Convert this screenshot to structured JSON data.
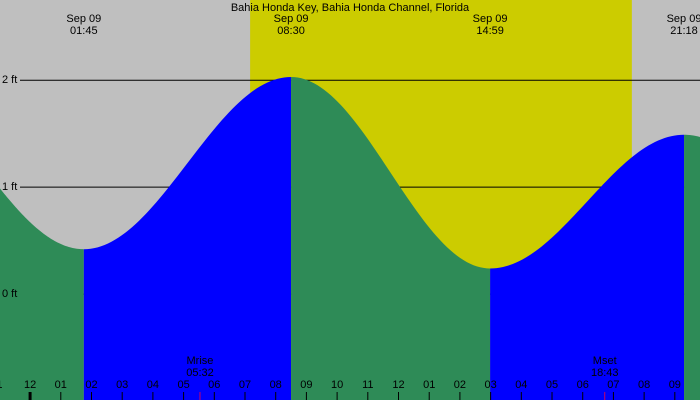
{
  "chart_data": {
    "type": "tide",
    "title": "Bahia Honda Key, Bahia Honda Channel, Florida",
    "xlim": [
      -0.98,
      21.82
    ],
    "ylim": [
      -0.99,
      2.75
    ],
    "xticks": [
      {
        "value": -1,
        "label": "1"
      },
      {
        "value": 0,
        "label": "12"
      },
      {
        "value": 1,
        "label": "01"
      },
      {
        "value": 2,
        "label": "02"
      },
      {
        "value": 3,
        "label": "03"
      },
      {
        "value": 4,
        "label": "04"
      },
      {
        "value": 5,
        "label": "05"
      },
      {
        "value": 6,
        "label": "06"
      },
      {
        "value": 7,
        "label": "07"
      },
      {
        "value": 8,
        "label": "08"
      },
      {
        "value": 9,
        "label": "09"
      },
      {
        "value": 10,
        "label": "10"
      },
      {
        "value": 11,
        "label": "11"
      },
      {
        "value": 12,
        "label": "12"
      },
      {
        "value": 13,
        "label": "01"
      },
      {
        "value": 14,
        "label": "02"
      },
      {
        "value": 15,
        "label": "03"
      },
      {
        "value": 16,
        "label": "04"
      },
      {
        "value": 17,
        "label": "05"
      },
      {
        "value": 18,
        "label": "06"
      },
      {
        "value": 19,
        "label": "07"
      },
      {
        "value": 20,
        "label": "08"
      },
      {
        "value": 21,
        "label": "09"
      }
    ],
    "yticks": [
      {
        "value": 0,
        "label": "0 ft"
      },
      {
        "value": 1,
        "label": "1 ft"
      },
      {
        "value": 2,
        "label": "2 ft"
      }
    ],
    "extremes": [
      {
        "date": "Sep 09",
        "time": "01:45",
        "height": 0.42
      },
      {
        "date": "Sep 09",
        "time": "08:30",
        "height": 2.03
      },
      {
        "date": "Sep 09",
        "time": "14:59",
        "height": 0.24
      },
      {
        "date": "Sep 09",
        "time": "21:18",
        "height": 1.49
      }
    ],
    "moon": [
      {
        "label": "Mrise",
        "time": "05:32"
      },
      {
        "label": "Mset",
        "time": "18:43"
      }
    ],
    "daylight": [
      "07:10",
      "19:36"
    ],
    "colors": {
      "night": "#bfbfbf",
      "day": "#cccc00",
      "falling": "#2e8b57",
      "rising": "#0000ff",
      "moon": "#cc0066"
    }
  }
}
